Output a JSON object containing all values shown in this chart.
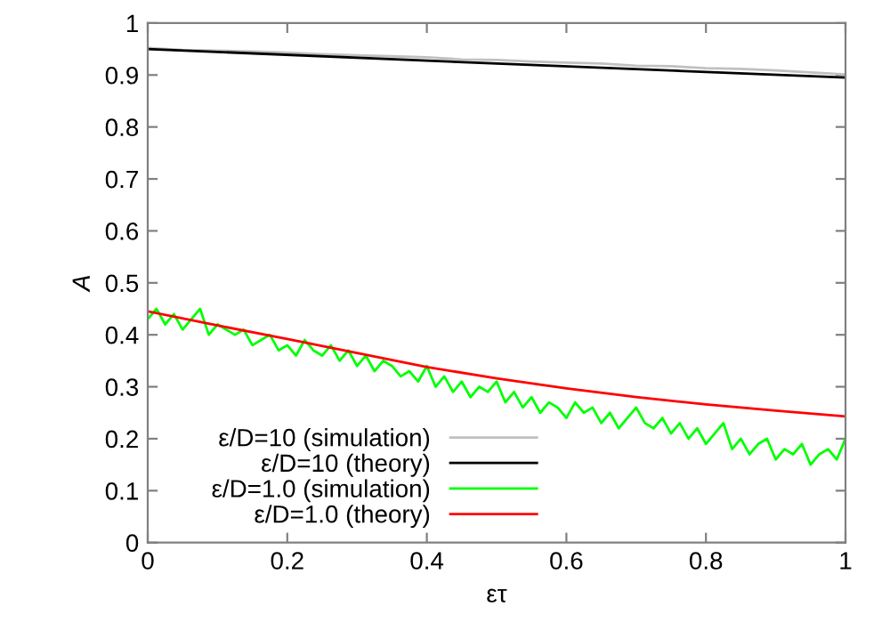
{
  "chart_data": {
    "type": "line",
    "xlabel": "ετ",
    "ylabel": "A",
    "xlim": [
      0,
      1
    ],
    "ylim": [
      0,
      1
    ],
    "xticks": [
      0,
      0.2,
      0.4,
      0.6,
      0.8,
      1
    ],
    "yticks": [
      0,
      0.1,
      0.2,
      0.3,
      0.4,
      0.5,
      0.6,
      0.7,
      0.8,
      0.9,
      1
    ],
    "grid": false,
    "legend": "bottom left",
    "marker": "none",
    "line_style": "solid",
    "series": [
      {
        "name": "ε/D=10 (simulation)",
        "color": "#c0c0c0",
        "x": [
          0,
          0.05,
          0.1,
          0.15,
          0.2,
          0.25,
          0.3,
          0.35,
          0.4,
          0.45,
          0.5,
          0.55,
          0.6,
          0.65,
          0.7,
          0.75,
          0.8,
          0.85,
          0.9,
          0.95,
          1
        ],
        "values": [
          0.952,
          0.948,
          0.947,
          0.945,
          0.943,
          0.94,
          0.938,
          0.936,
          0.934,
          0.93,
          0.929,
          0.926,
          0.924,
          0.922,
          0.918,
          0.917,
          0.913,
          0.912,
          0.909,
          0.905,
          0.901
        ]
      },
      {
        "name": "ε/D=10 (theory)",
        "color": "#000000",
        "x": [
          0,
          0.5,
          1
        ],
        "values": [
          0.95,
          0.922,
          0.895
        ]
      },
      {
        "name": "ε/D=1.0 (simulation)",
        "color": "#00ff00",
        "x": [
          0,
          0.0125,
          0.025,
          0.0375,
          0.05,
          0.0625,
          0.075,
          0.0875,
          0.1,
          0.1125,
          0.125,
          0.1375,
          0.15,
          0.1625,
          0.175,
          0.1875,
          0.2,
          0.2125,
          0.225,
          0.2375,
          0.25,
          0.2625,
          0.275,
          0.2875,
          0.3,
          0.3125,
          0.325,
          0.3375,
          0.35,
          0.3625,
          0.375,
          0.3875,
          0.4,
          0.4125,
          0.425,
          0.4375,
          0.45,
          0.4625,
          0.475,
          0.4875,
          0.5,
          0.5125,
          0.525,
          0.5375,
          0.55,
          0.5625,
          0.575,
          0.5875,
          0.6,
          0.6125,
          0.625,
          0.6375,
          0.65,
          0.6625,
          0.675,
          0.6875,
          0.7,
          0.7125,
          0.725,
          0.7375,
          0.75,
          0.7625,
          0.775,
          0.7875,
          0.8,
          0.8125,
          0.825,
          0.8375,
          0.85,
          0.8625,
          0.875,
          0.8875,
          0.9,
          0.9125,
          0.925,
          0.9375,
          0.95,
          0.9625,
          0.975,
          0.9875,
          1
        ],
        "values": [
          0.43,
          0.45,
          0.42,
          0.44,
          0.41,
          0.43,
          0.45,
          0.4,
          0.42,
          0.41,
          0.4,
          0.41,
          0.38,
          0.39,
          0.4,
          0.37,
          0.38,
          0.36,
          0.39,
          0.37,
          0.36,
          0.38,
          0.35,
          0.37,
          0.34,
          0.36,
          0.33,
          0.35,
          0.34,
          0.32,
          0.33,
          0.31,
          0.34,
          0.3,
          0.32,
          0.29,
          0.31,
          0.28,
          0.3,
          0.29,
          0.31,
          0.27,
          0.29,
          0.26,
          0.28,
          0.25,
          0.27,
          0.26,
          0.24,
          0.27,
          0.25,
          0.26,
          0.23,
          0.25,
          0.22,
          0.24,
          0.26,
          0.23,
          0.22,
          0.24,
          0.21,
          0.23,
          0.2,
          0.22,
          0.19,
          0.21,
          0.23,
          0.18,
          0.2,
          0.17,
          0.19,
          0.2,
          0.16,
          0.18,
          0.17,
          0.19,
          0.15,
          0.17,
          0.18,
          0.16,
          0.2
        ]
      },
      {
        "name": "ε/D=1.0 (theory)",
        "color": "#ff0000",
        "x": [
          0,
          0.1,
          0.2,
          0.3,
          0.4,
          0.5,
          0.6,
          0.7,
          0.8,
          0.9,
          1
        ],
        "values": [
          0.445,
          0.418,
          0.392,
          0.365,
          0.338,
          0.316,
          0.297,
          0.28,
          0.266,
          0.254,
          0.243
        ]
      }
    ]
  }
}
